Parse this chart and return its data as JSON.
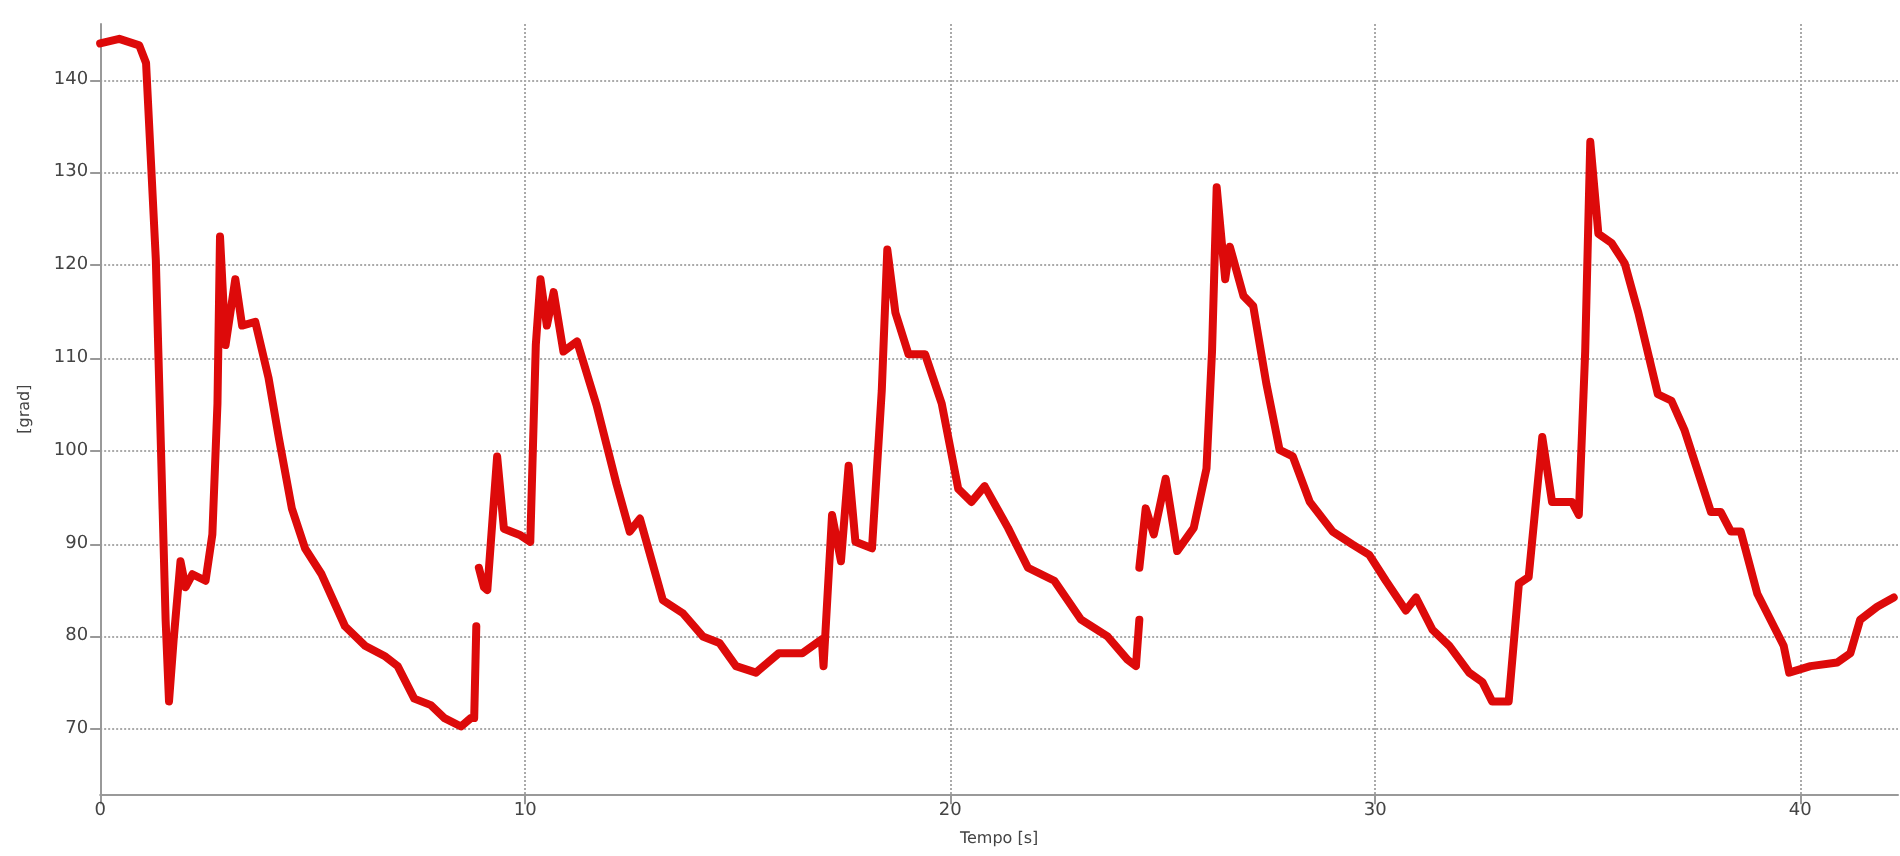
{
  "chart_data": {
    "type": "line",
    "xlabel": "Tempo [s]",
    "ylabel": "[grad]",
    "xlim": [
      0,
      42.3
    ],
    "ylim": [
      63,
      146
    ],
    "xticks": [
      0,
      10,
      20,
      30,
      40
    ],
    "yticks": [
      70,
      80,
      90,
      100,
      110,
      120,
      130,
      140
    ],
    "grid": true,
    "marker": "none",
    "line_style": "solid",
    "series": [
      {
        "color": "#dd0a0a",
        "x": [
          0,
          0.45,
          0.92,
          1.08,
          1.31,
          1.54,
          1.62,
          1.73,
          1.89,
          2.01,
          2.17,
          2.48,
          2.64,
          2.76,
          2.82,
          2.95,
          3.18,
          3.34,
          3.65,
          3.96,
          4.2,
          4.51,
          4.82,
          5.21,
          5.76,
          6.23,
          6.69,
          7.0,
          7.39,
          7.78,
          8.1,
          8.49,
          8.72,
          8.8,
          8.85
        ],
        "values": [
          143.9,
          144.4,
          143.7,
          141.8,
          120.6,
          81.8,
          73.0,
          79.7,
          88.1,
          85.3,
          86.7,
          86.0,
          91.0,
          105.1,
          123.1,
          111.4,
          118.5,
          113.5,
          113.9,
          107.9,
          101.5,
          93.8,
          89.5,
          86.7,
          81.1,
          79.0,
          77.9,
          76.8,
          73.3,
          72.6,
          71.2,
          70.3,
          71.2,
          71.2,
          81.1
        ]
      },
      {
        "color": "#dd0a0a",
        "x": [
          8.91,
          9.03,
          9.11,
          9.34,
          9.5,
          9.89,
          10.12,
          10.25,
          10.36,
          10.51,
          10.67,
          10.9,
          11.22,
          11.68,
          12.15,
          12.46,
          12.7,
          13.24,
          13.71,
          14.18,
          14.57,
          14.96,
          15.43,
          15.97,
          16.52,
          16.98,
          17.02,
          17.22,
          17.43,
          17.61,
          17.77,
          18.16,
          18.39,
          18.52,
          18.71,
          19.02,
          19.41,
          19.8,
          20.19,
          20.5,
          20.81,
          21.36,
          21.83,
          22.45,
          23.08,
          23.7,
          24.17,
          24.37,
          24.45
        ],
        "values": [
          87.4,
          85.3,
          85.0,
          99.4,
          91.6,
          90.9,
          90.2,
          111.4,
          118.5,
          113.5,
          117.1,
          110.7,
          111.8,
          104.9,
          96.4,
          91.3,
          92.7,
          83.9,
          82.5,
          80.0,
          79.3,
          76.8,
          76.1,
          78.2,
          78.2,
          79.7,
          76.8,
          93.1,
          88.1,
          98.4,
          90.2,
          89.5,
          106.5,
          121.7,
          114.9,
          110.4,
          110.4,
          105.1,
          95.9,
          94.5,
          96.2,
          91.7,
          87.4,
          86.0,
          81.8,
          80.0,
          77.5,
          76.8,
          81.8
        ]
      },
      {
        "color": "#dd0a0a",
        "x": [
          24.45,
          24.6,
          24.79,
          25.07,
          25.34,
          25.73,
          26.03,
          26.16,
          26.27,
          26.47,
          26.58,
          26.9,
          27.13,
          27.44,
          27.75,
          28.06,
          28.46,
          29.0,
          29.47,
          29.86,
          30.25,
          30.72,
          30.96,
          31.35,
          31.74,
          32.21,
          32.52,
          32.75,
          33.14,
          33.38,
          33.61,
          33.93,
          34.16,
          34.63,
          34.79,
          34.94,
          35.06,
          35.25,
          35.56,
          35.87,
          36.19,
          36.65,
          36.97,
          37.28,
          37.9,
          38.13,
          38.37,
          38.6,
          38.99,
          39.61,
          39.74,
          40.24,
          40.87,
          41.18,
          41.41,
          41.81,
          42.2
        ],
        "values": [
          87.4,
          93.8,
          91.0,
          97.0,
          89.2,
          91.7,
          98.1,
          110.7,
          128.4,
          118.5,
          122.0,
          116.7,
          115.6,
          107.2,
          100.1,
          99.4,
          94.5,
          91.3,
          89.9,
          88.8,
          86.0,
          82.8,
          84.2,
          80.7,
          79.0,
          76.1,
          75.1,
          73.0,
          73.0,
          85.7,
          86.4,
          101.5,
          94.5,
          94.5,
          93.1,
          110.7,
          133.3,
          123.4,
          122.4,
          120.2,
          114.9,
          106.1,
          105.4,
          102.2,
          93.4,
          93.4,
          91.3,
          91.3,
          84.6,
          79.0,
          76.1,
          76.8,
          77.2,
          78.2,
          81.8,
          83.2,
          84.2
        ]
      }
    ]
  }
}
